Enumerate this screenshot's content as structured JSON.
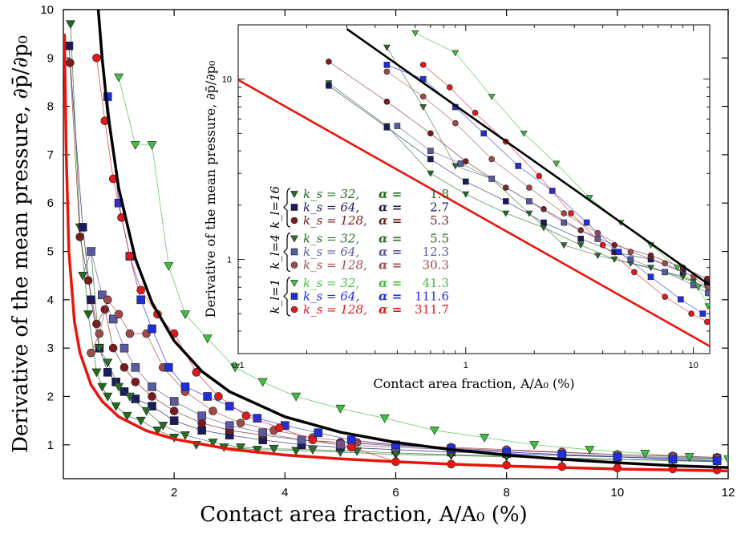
{
  "chart_data": [
    {
      "type": "scatter",
      "panel": "main",
      "xlabel": "Contact area fraction, A/A₀ (%)",
      "ylabel": "Derivative of the mean pressure, ∂p̄/∂p₀",
      "xlim": [
        0,
        12
      ],
      "ylim": [
        0.3,
        10
      ],
      "xticks": [
        2,
        4,
        6,
        8,
        10,
        12
      ],
      "yticks": [
        1,
        2,
        3,
        4,
        5,
        6,
        7,
        8,
        9,
        10
      ],
      "grid": false,
      "reference_curves": [
        {
          "name": "upper",
          "color": "#000000",
          "x": [
            0.63,
            0.7,
            0.8,
            1.0,
            1.3,
            1.6,
            2.0,
            2.5,
            3.0,
            4.0,
            5.0,
            6.0,
            7.0,
            8.0,
            9.0,
            10.0,
            11.0,
            12.0
          ],
          "y": [
            10.0,
            9.0,
            7.88,
            6.3,
            4.85,
            3.94,
            3.15,
            2.52,
            2.1,
            1.58,
            1.26,
            1.05,
            0.9,
            0.79,
            0.7,
            0.63,
            0.57,
            0.53
          ]
        },
        {
          "name": "lower",
          "color": "#e8150d",
          "x": [
            0.02,
            0.05,
            0.1,
            0.2,
            0.3,
            0.5,
            0.7,
            1.0,
            1.5,
            2.0,
            3.0,
            4.0,
            5.0,
            6.0,
            7.0,
            8.0,
            9.0,
            10.0,
            11.0,
            12.0
          ],
          "y": [
            9.5,
            7.1,
            5.0,
            3.55,
            2.9,
            2.24,
            1.9,
            1.58,
            1.29,
            1.12,
            0.91,
            0.79,
            0.71,
            0.65,
            0.6,
            0.56,
            0.53,
            0.5,
            0.48,
            0.46
          ]
        }
      ],
      "series": [
        {
          "name": "k_l=16, k_s=32",
          "color": "#1e6b1e",
          "marker": "triangle-down",
          "x": [
            0.13,
            0.3,
            0.45,
            0.6,
            0.7,
            0.8,
            0.95,
            1.15,
            1.4,
            1.7,
            2.0,
            2.4,
            2.9,
            3.5,
            4.2,
            5.0,
            6.0,
            7.0,
            8.0,
            9.0,
            10.0,
            11.0,
            11.8
          ],
          "y": [
            9.7,
            5.5,
            3.7,
            2.5,
            2.2,
            2.0,
            1.8,
            1.6,
            1.5,
            1.3,
            1.15,
            1.0,
            0.95,
            0.9,
            0.88,
            0.85,
            0.8,
            0.78,
            0.75,
            0.72,
            0.7,
            0.68,
            0.66
          ]
        },
        {
          "name": "k_l=16, k_s=64",
          "color": "#1a1a5e",
          "marker": "square",
          "x": [
            0.1,
            0.35,
            0.5,
            0.65,
            0.8,
            0.95,
            1.1,
            1.3,
            1.6,
            2.0,
            2.5,
            3.0,
            3.6,
            4.3,
            5.0,
            6.0,
            7.0,
            8.0,
            9.0,
            10.0,
            11.0,
            11.8
          ],
          "y": [
            9.25,
            5.5,
            4.0,
            3.0,
            2.5,
            2.3,
            2.1,
            1.95,
            1.8,
            1.5,
            1.3,
            1.2,
            1.1,
            1.0,
            0.95,
            0.9,
            0.85,
            0.82,
            0.78,
            0.75,
            0.72,
            0.7
          ]
        },
        {
          "name": "k_l=16, k_s=128",
          "color": "#7a1c1c",
          "marker": "circle",
          "x": [
            0.12,
            0.3,
            0.45,
            0.6,
            0.75,
            0.9,
            1.1,
            1.3,
            1.6,
            2.0,
            2.5,
            3.0,
            3.6,
            4.3,
            5.0,
            6.0,
            7.0,
            8.0,
            9.0,
            10.0,
            11.0,
            11.8
          ],
          "y": [
            8.9,
            5.3,
            4.4,
            3.5,
            3.8,
            3.0,
            2.6,
            2.3,
            2.0,
            1.7,
            1.45,
            1.3,
            1.2,
            1.1,
            1.05,
            0.98,
            0.93,
            0.88,
            0.84,
            0.8,
            0.77,
            0.74
          ]
        },
        {
          "name": "k_l=4, k_s=32",
          "color": "#2e6b2e",
          "marker": "triangle-down",
          "x": [
            0.35,
            0.5,
            0.65,
            0.8,
            1.0,
            1.2,
            1.5,
            1.8,
            2.2,
            2.7,
            3.2,
            3.8,
            4.5,
            5.3,
            6.0,
            7.0,
            8.0,
            9.0,
            10.0,
            11.0,
            11.8
          ],
          "y": [
            4.5,
            5.0,
            3.0,
            2.7,
            2.2,
            2.0,
            1.7,
            1.4,
            1.2,
            1.05,
            0.95,
            0.92,
            0.9,
            0.87,
            0.83,
            0.8,
            0.77,
            0.73,
            0.7,
            0.67,
            0.65
          ]
        },
        {
          "name": "k_l=4, k_s=64",
          "color": "#5a5aa0",
          "marker": "square",
          "x": [
            0.5,
            0.7,
            0.9,
            1.1,
            1.3,
            1.6,
            2.0,
            2.5,
            3.0,
            3.6,
            4.3,
            5.0,
            6.0,
            7.0,
            8.0,
            9.0,
            10.0,
            11.0,
            11.8
          ],
          "y": [
            5.0,
            4.1,
            3.6,
            3.0,
            2.6,
            2.2,
            1.9,
            1.6,
            1.4,
            1.25,
            1.1,
            1.0,
            0.95,
            0.9,
            0.85,
            0.8,
            0.77,
            0.74,
            0.72
          ]
        },
        {
          "name": "k_l=4, k_s=128",
          "color": "#a04a4a",
          "marker": "circle",
          "x": [
            0.5,
            0.65,
            0.8,
            1.0,
            1.2,
            1.5,
            1.8,
            2.2,
            2.7,
            3.2,
            3.8,
            4.5,
            5.3,
            6.0,
            7.0,
            8.0,
            9.0,
            10.0,
            11.0,
            11.8
          ],
          "y": [
            2.9,
            3.3,
            4.0,
            3.7,
            3.3,
            3.3,
            2.6,
            2.1,
            1.7,
            1.45,
            1.3,
            1.15,
            1.05,
            1.0,
            0.95,
            0.9,
            0.85,
            0.8,
            0.76,
            0.72
          ]
        },
        {
          "name": "k_l=1, k_s=32",
          "color": "#3fbf3f",
          "marker": "triangle-down",
          "x": [
            1.0,
            1.3,
            1.6,
            1.9,
            2.2,
            2.6,
            3.1,
            3.6,
            4.2,
            5.0,
            5.8,
            6.7,
            7.6,
            8.5,
            9.5,
            10.5,
            11.3,
            12.0
          ],
          "y": [
            8.6,
            7.2,
            7.2,
            4.7,
            3.7,
            3.2,
            2.6,
            2.3,
            2.0,
            1.75,
            1.55,
            1.3,
            1.15,
            1.0,
            0.9,
            0.82,
            0.75,
            0.7
          ]
        },
        {
          "name": "k_l=1, k_s=64",
          "color": "#1f2fd9",
          "marker": "square",
          "x": [
            0.8,
            1.0,
            1.2,
            1.4,
            1.6,
            1.9,
            2.2,
            2.6,
            3.0,
            3.5,
            4.0,
            4.6,
            5.2,
            6.0,
            7.0,
            8.0,
            9.0,
            10.0,
            11.0,
            11.8
          ],
          "y": [
            8.2,
            6.0,
            4.9,
            4.0,
            3.4,
            2.6,
            2.2,
            2.0,
            1.8,
            1.55,
            1.4,
            1.25,
            1.1,
            1.0,
            0.92,
            0.85,
            0.8,
            0.75,
            0.7,
            0.67
          ]
        },
        {
          "name": "k_l=1, k_s=128",
          "color": "#e01a1a",
          "marker": "circle",
          "x": [
            0.6,
            0.75,
            0.9,
            1.05,
            1.2,
            1.4,
            1.7,
            2.0,
            2.4,
            2.8,
            3.3,
            3.9,
            4.5,
            5.2,
            6.0,
            7.0,
            8.0,
            9.0,
            10.0,
            11.0,
            11.8
          ],
          "y": [
            9.0,
            7.7,
            6.5,
            5.7,
            4.9,
            4.2,
            3.7,
            3.3,
            2.5,
            2.0,
            1.6,
            1.35,
            1.1,
            0.95,
            0.65,
            0.6,
            0.58,
            0.55,
            0.52,
            0.5,
            0.48
          ]
        }
      ]
    },
    {
      "type": "scatter",
      "panel": "inset",
      "scale": "log-log",
      "xlabel": "Contact area fraction, A/A₀ (%)",
      "ylabel": "Derivative of the mean pressure, ∂p̄/∂p₀",
      "xlim": [
        0.1,
        11.8
      ],
      "ylim": [
        0.3,
        20
      ],
      "xticks": [
        0.1,
        1,
        10
      ],
      "xtick_labels": [
        "0.1",
        "1",
        "10"
      ],
      "yticks": [
        1,
        10
      ],
      "ytick_labels": [
        "1",
        "10"
      ],
      "grid": false,
      "reference_curves": [
        {
          "name": "upper",
          "color": "#000000",
          "x": [
            0.3,
            11.8
          ],
          "y": [
            19.0,
            0.72
          ]
        },
        {
          "name": "lower",
          "color": "#e8150d",
          "x": [
            0.1,
            11.8
          ],
          "y": [
            9.9,
            0.33
          ]
        }
      ],
      "series": [
        {
          "name": "k_l=16, k_s=32",
          "color": "#1e6b1e",
          "marker": "triangle-down",
          "x": [
            0.25,
            0.45,
            0.7,
            1.0,
            1.5,
            2.2,
            3.2,
            4.5,
            6.5,
            9.0,
            11.5
          ],
          "y": [
            9.5,
            5.5,
            3.0,
            2.3,
            1.8,
            1.5,
            1.2,
            1.0,
            0.9,
            0.8,
            0.7
          ]
        },
        {
          "name": "k_l=16, k_s=64",
          "color": "#1a1a5e",
          "marker": "square",
          "x": [
            0.25,
            0.45,
            0.7,
            1.0,
            1.5,
            2.2,
            3.2,
            4.5,
            6.5,
            9.0,
            11.5
          ],
          "y": [
            9.2,
            5.4,
            3.6,
            2.7,
            2.1,
            1.6,
            1.3,
            1.1,
            1.0,
            0.85,
            0.75
          ]
        },
        {
          "name": "k_l=16, k_s=128",
          "color": "#7a1c1c",
          "marker": "circle",
          "x": [
            0.25,
            0.45,
            0.7,
            1.0,
            1.5,
            2.2,
            3.2,
            4.5,
            6.5,
            9.0,
            11.5
          ],
          "y": [
            12.5,
            7.5,
            5.0,
            3.5,
            2.5,
            1.9,
            1.45,
            1.2,
            1.05,
            0.9,
            0.78
          ]
        },
        {
          "name": "k_l=4, k_s=32",
          "color": "#2e6b2e",
          "marker": "triangle-down",
          "x": [
            0.45,
            0.65,
            0.9,
            1.3,
            1.9,
            2.7,
            3.8,
            5.3,
            7.5,
            10.0,
            11.6
          ],
          "y": [
            15.0,
            7.0,
            3.3,
            2.8,
            1.8,
            1.2,
            1.05,
            0.95,
            0.85,
            0.75,
            0.68
          ]
        },
        {
          "name": "k_l=4, k_s=64",
          "color": "#5a5aa0",
          "marker": "square",
          "x": [
            0.5,
            0.7,
            0.95,
            1.3,
            1.9,
            2.7,
            3.8,
            5.3,
            7.5,
            10.0,
            11.6
          ],
          "y": [
            5.5,
            4.0,
            3.4,
            2.8,
            2.1,
            1.6,
            1.3,
            1.0,
            0.85,
            0.72,
            0.65
          ]
        },
        {
          "name": "k_l=4, k_s=128",
          "color": "#a04a4a",
          "marker": "circle",
          "x": [
            0.45,
            0.65,
            0.9,
            1.3,
            1.9,
            2.7,
            3.8,
            5.3,
            7.5,
            10.0,
            11.6
          ],
          "y": [
            11.0,
            8.0,
            5.7,
            3.6,
            2.5,
            1.8,
            1.4,
            1.1,
            0.95,
            0.8,
            0.7
          ]
        },
        {
          "name": "k_l=1, k_s=32",
          "color": "#3fbf3f",
          "marker": "triangle-down",
          "x": [
            0.6,
            0.9,
            1.3,
            1.8,
            2.5,
            3.5,
            4.8,
            6.5,
            8.5,
            10.5,
            11.6
          ],
          "y": [
            18.0,
            14.0,
            8.0,
            5.0,
            3.4,
            2.2,
            1.6,
            1.2,
            0.9,
            0.7,
            0.55
          ]
        },
        {
          "name": "k_l=1, k_s=64",
          "color": "#1f2fd9",
          "marker": "square",
          "x": [
            0.45,
            0.65,
            0.9,
            1.2,
            1.7,
            2.4,
            3.4,
            4.7,
            6.5,
            8.8,
            11.0
          ],
          "y": [
            12.0,
            10.0,
            7.0,
            5.0,
            3.3,
            2.4,
            1.6,
            1.1,
            0.8,
            0.6,
            0.5
          ]
        },
        {
          "name": "k_l=1, k_s=128",
          "color": "#e01a1a",
          "marker": "circle",
          "x": [
            0.65,
            0.85,
            1.1,
            1.5,
            2.1,
            2.9,
            4.0,
            5.5,
            7.5,
            9.8,
            11.5
          ],
          "y": [
            12.0,
            9.0,
            6.5,
            4.5,
            2.9,
            1.8,
            1.2,
            0.85,
            0.62,
            0.5,
            0.45
          ]
        }
      ]
    }
  ],
  "legend": {
    "placement": "inset-left",
    "groups": [
      {
        "label": "k_l=16",
        "rows": [
          {
            "ks": "32",
            "alpha": "1.8",
            "color": "#1e6b1e",
            "marker": "triangle-down"
          },
          {
            "ks": "64",
            "alpha": "2.7",
            "color": "#1a1a5e",
            "marker": "square"
          },
          {
            "ks": "128",
            "alpha": "5.3",
            "color": "#7a1c1c",
            "marker": "circle"
          }
        ]
      },
      {
        "label": "k_l=4",
        "rows": [
          {
            "ks": "32",
            "alpha": "5.5",
            "color": "#2e6b2e",
            "marker": "triangle-down"
          },
          {
            "ks": "64",
            "alpha": "12.3",
            "color": "#5a5aa0",
            "marker": "square"
          },
          {
            "ks": "128",
            "alpha": "30.3",
            "color": "#a04a4a",
            "marker": "circle"
          }
        ]
      },
      {
        "label": "k_l=1",
        "rows": [
          {
            "ks": "32",
            "alpha": "41.3",
            "color": "#3fbf3f",
            "marker": "triangle-down"
          },
          {
            "ks": "64",
            "alpha": "111.6",
            "color": "#1f2fd9",
            "marker": "square"
          },
          {
            "ks": "128",
            "alpha": "311.7",
            "color": "#e01a1a",
            "marker": "circle"
          }
        ]
      }
    ]
  }
}
